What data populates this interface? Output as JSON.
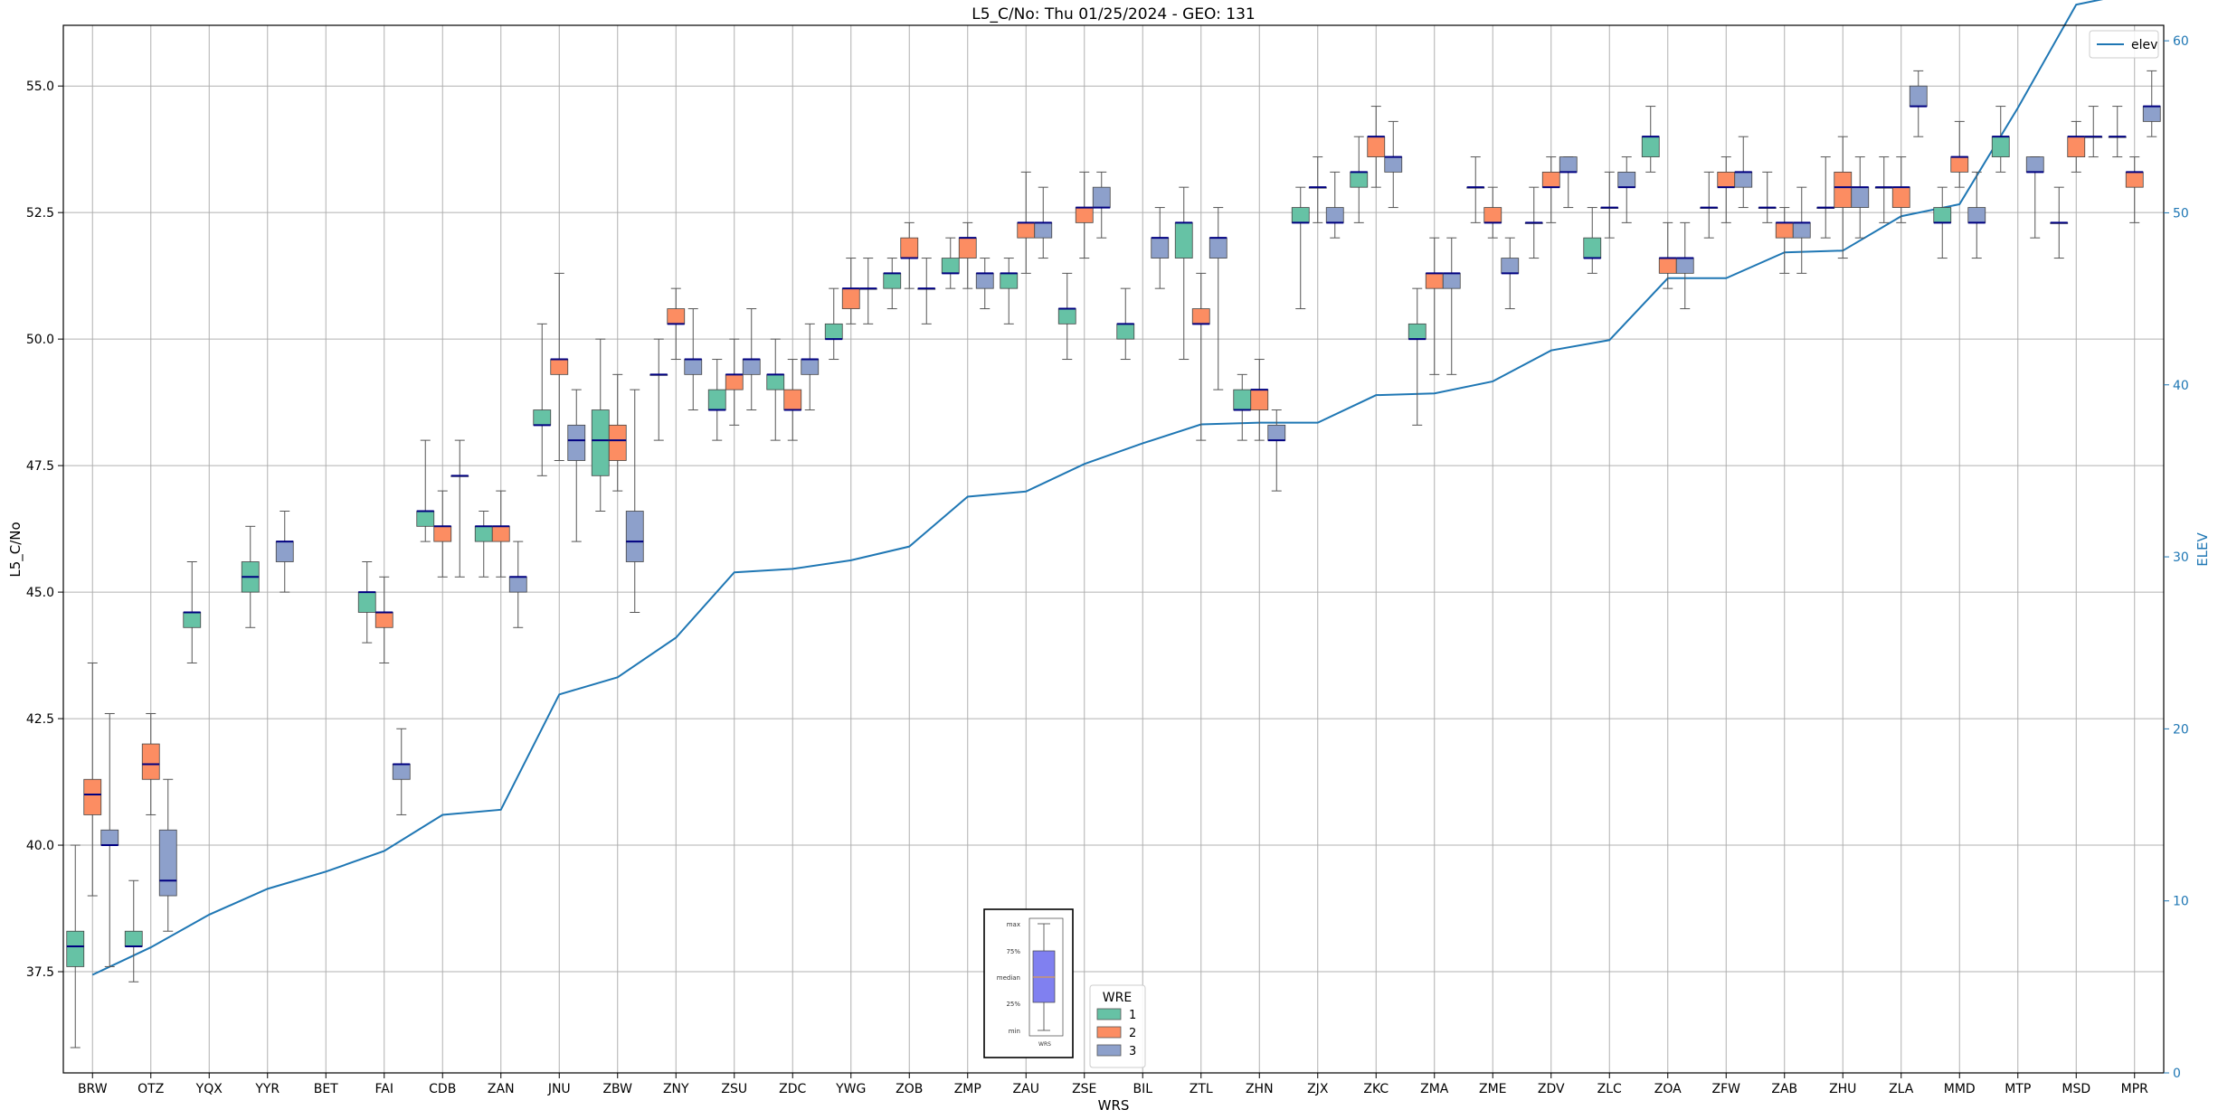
{
  "chart_data": {
    "type": "box",
    "title": "L5_C/No: Thu 01/25/2024 - GEO: 131",
    "xlabel": "WRS",
    "ylabel": "L5_C/No",
    "ylabel_right": "ELEV",
    "categories": [
      "BRW",
      "OTZ",
      "YQX",
      "YYR",
      "BET",
      "FAI",
      "CDB",
      "ZAN",
      "JNU",
      "ZBW",
      "ZNY",
      "ZSU",
      "ZDC",
      "YWG",
      "ZOB",
      "ZMP",
      "ZAU",
      "ZSE",
      "BIL",
      "ZTL",
      "ZHN",
      "ZJX",
      "ZKC",
      "ZMA",
      "ZME",
      "ZDV",
      "ZLC",
      "ZOA",
      "ZFW",
      "ZAB",
      "ZHU",
      "ZLA",
      "MMD",
      "MTP",
      "MSD",
      "MPR"
    ],
    "ylim": [
      35.5,
      56.2
    ],
    "yticks": [
      37.5,
      40.0,
      42.5,
      45.0,
      47.5,
      50.0,
      52.5,
      55.0
    ],
    "ytick_labels": [
      "37.5",
      "40.0",
      "42.5",
      "45.0",
      "47.5",
      "50.0",
      "52.5",
      "55.0"
    ],
    "ylim_right": [
      0,
      60.9
    ],
    "yticks_right": [
      0,
      10,
      20,
      30,
      40,
      50,
      60
    ],
    "ytick_labels_right": [
      "0",
      "10",
      "20",
      "30",
      "40",
      "50",
      "60"
    ],
    "grid": true,
    "wre_legend": {
      "title": "WRE",
      "entries": [
        {
          "name": "1",
          "color": "#66c2a5"
        },
        {
          "name": "2",
          "color": "#fc8d62"
        },
        {
          "name": "3",
          "color": "#8da0cb"
        }
      ]
    },
    "elev_legend": {
      "label": "elev",
      "color": "#1f77b4"
    },
    "elev": [
      5.7,
      7.3,
      9.2,
      10.7,
      11.7,
      12.9,
      15.0,
      15.3,
      22.0,
      23.0,
      25.3,
      29.1,
      29.3,
      29.8,
      30.6,
      33.5,
      33.8,
      35.4,
      36.6,
      37.7,
      37.8,
      37.8,
      39.4,
      39.5,
      40.2,
      42.0,
      42.6,
      46.2,
      46.2,
      47.7,
      47.8,
      49.8,
      50.5,
      56.1,
      62.1,
      62.8
    ],
    "boxes": [
      [
        [
          36.0,
          37.6,
          38.0,
          38.3,
          40.0
        ],
        [
          39.0,
          40.6,
          41.0,
          41.3,
          43.6
        ],
        [
          37.6,
          40.0,
          40.0,
          40.3,
          42.6
        ]
      ],
      [
        [
          37.3,
          38.0,
          38.0,
          38.3,
          39.3
        ],
        [
          40.6,
          41.3,
          41.6,
          42.0,
          42.6
        ],
        [
          38.3,
          39.0,
          39.3,
          40.3,
          41.3
        ]
      ],
      [
        [
          43.6,
          44.3,
          44.6,
          44.6,
          45.6
        ],
        null,
        null
      ],
      [
        [
          44.3,
          45.0,
          45.3,
          45.6,
          46.3
        ],
        [
          null,
          null,
          null,
          null,
          null
        ],
        [
          45.0,
          45.6,
          46.0,
          46.0,
          46.6
        ]
      ],
      [
        null,
        null,
        null
      ],
      [
        [
          44.0,
          44.6,
          45.0,
          45.0,
          45.6
        ],
        [
          43.6,
          44.3,
          44.6,
          44.6,
          45.3
        ],
        [
          40.6,
          41.3,
          41.6,
          41.6,
          42.3
        ]
      ],
      [
        [
          46.0,
          46.3,
          46.6,
          46.6,
          48.0
        ],
        [
          45.3,
          46.0,
          46.3,
          46.3,
          47.0
        ],
        [
          45.3,
          47.3,
          47.3,
          47.3,
          48.0
        ]
      ],
      [
        [
          45.3,
          46.0,
          46.3,
          46.3,
          46.6
        ],
        [
          45.3,
          46.0,
          46.3,
          46.3,
          47.0
        ],
        [
          44.3,
          45.0,
          45.3,
          45.3,
          46.0
        ]
      ],
      [
        [
          47.3,
          48.3,
          48.3,
          48.6,
          50.3
        ],
        [
          47.6,
          49.3,
          49.6,
          49.6,
          51.3
        ],
        [
          46.0,
          47.6,
          48.0,
          48.3,
          49.0
        ]
      ],
      [
        [
          46.6,
          47.3,
          48.0,
          48.6,
          50.0
        ],
        [
          47.0,
          47.6,
          48.0,
          48.3,
          49.3
        ],
        [
          44.6,
          45.6,
          46.0,
          46.6,
          49.0
        ]
      ],
      [
        [
          48.0,
          49.3,
          49.3,
          49.3,
          50.0
        ],
        [
          49.6,
          50.3,
          50.3,
          50.6,
          51.0
        ],
        [
          48.6,
          49.3,
          49.6,
          49.6,
          50.6
        ]
      ],
      [
        [
          48.0,
          48.6,
          48.6,
          49.0,
          49.6
        ],
        [
          48.3,
          49.0,
          49.3,
          49.3,
          50.0
        ],
        [
          48.6,
          49.3,
          49.6,
          49.6,
          50.6
        ]
      ],
      [
        [
          48.0,
          49.0,
          49.3,
          49.3,
          50.0
        ],
        [
          48.0,
          48.6,
          48.6,
          49.0,
          49.6
        ],
        [
          48.6,
          49.3,
          49.6,
          49.6,
          50.3
        ]
      ],
      [
        [
          49.6,
          50.0,
          50.0,
          50.3,
          51.0
        ],
        [
          50.3,
          50.6,
          51.0,
          51.0,
          51.6
        ],
        [
          50.3,
          51.0,
          51.0,
          51.0,
          51.6
        ]
      ],
      [
        [
          50.6,
          51.0,
          51.3,
          51.3,
          51.6
        ],
        [
          51.0,
          51.6,
          51.6,
          52.0,
          52.3
        ],
        [
          50.3,
          51.0,
          51.0,
          51.0,
          51.6
        ]
      ],
      [
        [
          51.0,
          51.3,
          51.3,
          51.6,
          52.0
        ],
        [
          51.0,
          51.6,
          52.0,
          52.0,
          52.3
        ],
        [
          50.6,
          51.0,
          51.3,
          51.3,
          51.6
        ]
      ],
      [
        [
          50.3,
          51.0,
          51.3,
          51.3,
          51.6
        ],
        [
          51.3,
          52.0,
          52.3,
          52.3,
          53.3
        ],
        [
          51.6,
          52.0,
          52.3,
          52.3,
          53.0
        ]
      ],
      [
        [
          49.6,
          50.3,
          50.6,
          50.6,
          51.3
        ],
        [
          51.6,
          52.3,
          52.6,
          52.6,
          53.3
        ],
        [
          52.0,
          52.6,
          52.6,
          53.0,
          53.3
        ]
      ],
      [
        [
          49.6,
          50.0,
          50.3,
          50.3,
          51.0
        ],
        null,
        [
          51.0,
          51.6,
          52.0,
          52.0,
          52.6
        ]
      ],
      [
        [
          49.6,
          51.6,
          52.3,
          52.3,
          53.0
        ],
        [
          48.0,
          50.3,
          50.3,
          50.6,
          51.3
        ],
        [
          49.0,
          51.6,
          52.0,
          52.0,
          52.6
        ]
      ],
      [
        [
          48.0,
          48.6,
          48.6,
          49.0,
          49.3
        ],
        [
          48.0,
          48.6,
          49.0,
          49.0,
          49.6
        ],
        [
          47.0,
          48.0,
          48.0,
          48.3,
          48.6
        ]
      ],
      [
        [
          50.6,
          52.3,
          52.3,
          52.6,
          53.0
        ],
        [
          52.3,
          53.0,
          53.0,
          53.0,
          53.6
        ],
        [
          52.0,
          52.3,
          52.3,
          52.6,
          53.3
        ]
      ],
      [
        [
          52.3,
          53.0,
          53.3,
          53.3,
          54.0
        ],
        [
          53.0,
          53.6,
          54.0,
          54.0,
          54.6
        ],
        [
          52.6,
          53.3,
          53.6,
          53.6,
          54.3
        ]
      ],
      [
        [
          48.3,
          50.0,
          50.0,
          50.3,
          51.0
        ],
        [
          49.3,
          51.0,
          51.3,
          51.3,
          52.0
        ],
        [
          49.3,
          51.0,
          51.3,
          51.3,
          52.0
        ]
      ],
      [
        [
          52.3,
          53.0,
          53.0,
          53.0,
          53.6
        ],
        [
          52.0,
          52.3,
          52.3,
          52.6,
          53.0
        ],
        [
          50.6,
          51.3,
          51.3,
          51.6,
          52.0
        ]
      ],
      [
        [
          51.6,
          52.3,
          52.3,
          52.3,
          53.0
        ],
        [
          52.3,
          53.0,
          53.0,
          53.3,
          53.6
        ],
        [
          52.6,
          53.3,
          53.3,
          53.6,
          53.6
        ]
      ],
      [
        [
          51.3,
          51.6,
          51.6,
          52.0,
          52.6
        ],
        [
          52.0,
          52.6,
          52.6,
          52.6,
          53.3
        ],
        [
          52.3,
          53.0,
          53.0,
          53.3,
          53.6
        ]
      ],
      [
        [
          53.3,
          53.6,
          54.0,
          54.0,
          54.6
        ],
        [
          51.0,
          51.3,
          51.6,
          51.6,
          52.3
        ],
        [
          50.6,
          51.3,
          51.6,
          51.6,
          52.3
        ]
      ],
      [
        [
          52.0,
          52.6,
          52.6,
          52.6,
          53.3
        ],
        [
          52.3,
          53.0,
          53.0,
          53.3,
          53.6
        ],
        [
          52.6,
          53.0,
          53.3,
          53.3,
          54.0
        ]
      ],
      [
        [
          52.3,
          52.6,
          52.6,
          52.6,
          53.3
        ],
        [
          51.3,
          52.0,
          52.3,
          52.3,
          52.6
        ],
        [
          51.3,
          52.0,
          52.3,
          52.3,
          53.0
        ]
      ],
      [
        [
          52.0,
          52.6,
          52.6,
          52.6,
          53.6
        ],
        [
          51.6,
          52.6,
          53.0,
          53.3,
          54.0
        ],
        [
          52.0,
          52.6,
          53.0,
          53.0,
          53.6
        ]
      ],
      [
        [
          52.3,
          53.0,
          53.0,
          53.0,
          53.6
        ],
        [
          52.3,
          52.6,
          53.0,
          53.0,
          53.6
        ],
        [
          54.0,
          54.6,
          54.6,
          55.0,
          55.3
        ]
      ],
      [
        [
          51.6,
          52.3,
          52.3,
          52.6,
          53.0
        ],
        [
          53.0,
          53.3,
          53.6,
          53.6,
          54.3
        ],
        [
          51.6,
          52.3,
          52.3,
          52.6,
          53.3
        ]
      ],
      [
        [
          53.3,
          53.6,
          54.0,
          54.0,
          54.6
        ],
        null,
        [
          52.0,
          53.3,
          53.3,
          53.6,
          53.6
        ]
      ],
      [
        [
          51.6,
          52.3,
          52.3,
          52.3,
          53.0
        ],
        [
          53.3,
          53.6,
          54.0,
          54.0,
          54.3
        ],
        [
          53.6,
          54.0,
          54.0,
          54.0,
          54.6
        ]
      ],
      [
        [
          53.6,
          54.0,
          54.0,
          54.0,
          54.6
        ],
        [
          52.3,
          53.0,
          53.3,
          53.3,
          53.6
        ],
        [
          54.0,
          54.3,
          54.6,
          54.6,
          55.3
        ]
      ]
    ],
    "inset_legend": {
      "labels": [
        "max",
        "75%",
        "median",
        "25%",
        "min"
      ],
      "xlabel": "WRS"
    }
  }
}
